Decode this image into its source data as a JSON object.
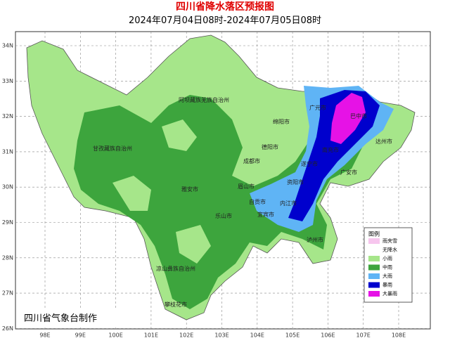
{
  "header": {
    "title": "四川省降水落区预报图",
    "subtitle": "2024年07月04日08时-2024年07月05日08时"
  },
  "map": {
    "lon_labels": [
      "98E",
      "99E",
      "100E",
      "101E",
      "102E",
      "103E",
      "104E",
      "105E",
      "106E",
      "107E",
      "108E"
    ],
    "lat_labels": [
      "34N",
      "33N",
      "32N",
      "31N",
      "30N",
      "29N",
      "28N",
      "27N",
      "26N"
    ],
    "cities": [
      "阿坝藏族羌族自治州",
      "甘孜藏族自治州",
      "凉山彝族自治州",
      "攀枝花市",
      "雅安市",
      "成都市",
      "绵阳市",
      "德阳市",
      "广元市",
      "巴中市",
      "达州市",
      "南充市",
      "广安市",
      "遂宁市",
      "资阳市",
      "内江市",
      "自贡市",
      "宜宾市",
      "泸州市",
      "乐山市",
      "眉山市"
    ]
  },
  "legend": {
    "title": "图例",
    "items": [
      {
        "label": "雨夹雪",
        "color": "#f7c6ee"
      },
      {
        "label": "无降水",
        "color": "#ffffff"
      },
      {
        "label": "小雨",
        "color": "#a6e68a"
      },
      {
        "label": "中雨",
        "color": "#3da53d"
      },
      {
        "label": "大雨",
        "color": "#5fb4f5"
      },
      {
        "label": "暴雨",
        "color": "#0000cd"
      },
      {
        "label": "大暴雨",
        "color": "#e612e6"
      }
    ]
  },
  "credit": "四川省气象台制作"
}
